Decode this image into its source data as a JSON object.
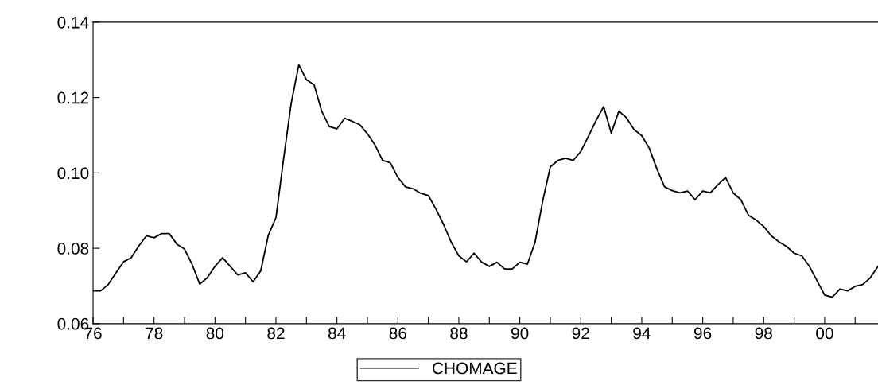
{
  "chart_data": {
    "type": "line",
    "xlim": [
      1976,
      2001.75
    ],
    "ylim": [
      0.06,
      0.14
    ],
    "xticks": [
      {
        "value": 1976,
        "label": "76"
      },
      {
        "value": 1977,
        "label": null
      },
      {
        "value": 1978,
        "label": "78"
      },
      {
        "value": 1979,
        "label": null
      },
      {
        "value": 1980,
        "label": "80"
      },
      {
        "value": 1981,
        "label": null
      },
      {
        "value": 1982,
        "label": "82"
      },
      {
        "value": 1983,
        "label": null
      },
      {
        "value": 1984,
        "label": "84"
      },
      {
        "value": 1985,
        "label": null
      },
      {
        "value": 1986,
        "label": "86"
      },
      {
        "value": 1987,
        "label": null
      },
      {
        "value": 1988,
        "label": "88"
      },
      {
        "value": 1989,
        "label": null
      },
      {
        "value": 1990,
        "label": "90"
      },
      {
        "value": 1991,
        "label": null
      },
      {
        "value": 1992,
        "label": "92"
      },
      {
        "value": 1993,
        "label": null
      },
      {
        "value": 1994,
        "label": "94"
      },
      {
        "value": 1995,
        "label": null
      },
      {
        "value": 1996,
        "label": "96"
      },
      {
        "value": 1997,
        "label": null
      },
      {
        "value": 1998,
        "label": "98"
      },
      {
        "value": 1999,
        "label": null
      },
      {
        "value": 2000,
        "label": "00"
      },
      {
        "value": 2001,
        "label": null
      }
    ],
    "yticks": [
      {
        "value": 0.06,
        "label": "0.06"
      },
      {
        "value": 0.08,
        "label": "0.08"
      },
      {
        "value": 0.1,
        "label": "0.10"
      },
      {
        "value": 0.12,
        "label": "0.12"
      },
      {
        "value": 0.14,
        "label": "0.14"
      }
    ],
    "grid": false,
    "legend": "bottom",
    "marker": "none",
    "line_style": "solid",
    "x": [
      1976.0,
      1976.25,
      1976.5,
      1976.75,
      1977.0,
      1977.25,
      1977.5,
      1977.75,
      1978.0,
      1978.25,
      1978.5,
      1978.75,
      1979.0,
      1979.25,
      1979.5,
      1979.75,
      1980.0,
      1980.25,
      1980.5,
      1980.75,
      1981.0,
      1981.25,
      1981.5,
      1981.75,
      1982.0,
      1982.25,
      1982.5,
      1982.75,
      1983.0,
      1983.25,
      1983.5,
      1983.75,
      1984.0,
      1984.25,
      1984.5,
      1984.75,
      1985.0,
      1985.25,
      1985.5,
      1985.75,
      1986.0,
      1986.25,
      1986.5,
      1986.75,
      1987.0,
      1987.25,
      1987.5,
      1987.75,
      1988.0,
      1988.25,
      1988.5,
      1988.75,
      1989.0,
      1989.25,
      1989.5,
      1989.75,
      1990.0,
      1990.25,
      1990.5,
      1990.75,
      1991.0,
      1991.25,
      1991.5,
      1991.75,
      1992.0,
      1992.25,
      1992.5,
      1992.75,
      1993.0,
      1993.25,
      1993.5,
      1993.75,
      1994.0,
      1994.25,
      1994.5,
      1994.75,
      1995.0,
      1995.25,
      1995.5,
      1995.75,
      1996.0,
      1996.25,
      1996.5,
      1996.75,
      1997.0,
      1997.25,
      1997.5,
      1997.75,
      1998.0,
      1998.25,
      1998.5,
      1998.75,
      1999.0,
      1999.25,
      1999.5,
      1999.75,
      2000.0,
      2000.25,
      2000.5,
      2000.75,
      2001.0,
      2001.25,
      2001.5,
      2001.75
    ],
    "series": [
      {
        "name": "CHOMAGE",
        "color": "#000000",
        "values": [
          0.0687,
          0.0687,
          0.0704,
          0.0735,
          0.0764,
          0.0775,
          0.0806,
          0.0833,
          0.0828,
          0.0839,
          0.0839,
          0.0811,
          0.0798,
          0.0757,
          0.0705,
          0.0722,
          0.0752,
          0.0775,
          0.0752,
          0.0729,
          0.0735,
          0.0711,
          0.074,
          0.0835,
          0.0881,
          0.1037,
          0.1185,
          0.1287,
          0.1247,
          0.1234,
          0.1164,
          0.1123,
          0.1117,
          0.1145,
          0.1137,
          0.1128,
          0.1104,
          0.1074,
          0.1033,
          0.1027,
          0.0988,
          0.0963,
          0.0958,
          0.0946,
          0.094,
          0.0904,
          0.0863,
          0.0816,
          0.078,
          0.0764,
          0.0787,
          0.0763,
          0.0752,
          0.0763,
          0.0745,
          0.0745,
          0.0763,
          0.0758,
          0.0816,
          0.0925,
          0.1016,
          0.1033,
          0.1039,
          0.1033,
          0.1057,
          0.1097,
          0.1139,
          0.1176,
          0.1106,
          0.1164,
          0.1146,
          0.1115,
          0.1099,
          0.1065,
          0.101,
          0.0963,
          0.0953,
          0.0947,
          0.0952,
          0.0929,
          0.0952,
          0.0947,
          0.0969,
          0.0988,
          0.0947,
          0.0929,
          0.0888,
          0.0875,
          0.0858,
          0.0833,
          0.0817,
          0.0805,
          0.0787,
          0.078,
          0.0752,
          0.0714,
          0.0676,
          0.067,
          0.0692,
          0.0687,
          0.0699,
          0.0704,
          0.0722,
          0.0752
        ]
      }
    ]
  }
}
